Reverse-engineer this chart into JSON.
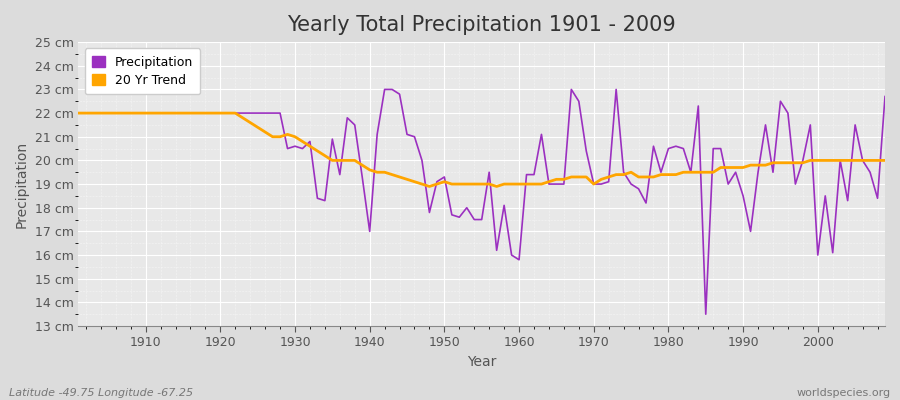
{
  "title": "Yearly Total Precipitation 1901 - 2009",
  "xlabel": "Year",
  "ylabel": "Precipitation",
  "years": [
    1901,
    1902,
    1903,
    1904,
    1905,
    1906,
    1907,
    1908,
    1909,
    1910,
    1911,
    1912,
    1913,
    1914,
    1915,
    1916,
    1917,
    1918,
    1919,
    1920,
    1921,
    1922,
    1923,
    1924,
    1925,
    1926,
    1927,
    1928,
    1929,
    1930,
    1931,
    1932,
    1933,
    1934,
    1935,
    1936,
    1937,
    1938,
    1939,
    1940,
    1941,
    1942,
    1943,
    1944,
    1945,
    1946,
    1947,
    1948,
    1949,
    1950,
    1951,
    1952,
    1953,
    1954,
    1955,
    1956,
    1957,
    1958,
    1959,
    1960,
    1961,
    1962,
    1963,
    1964,
    1965,
    1966,
    1967,
    1968,
    1969,
    1970,
    1971,
    1972,
    1973,
    1974,
    1975,
    1976,
    1977,
    1978,
    1979,
    1980,
    1981,
    1982,
    1983,
    1984,
    1985,
    1986,
    1987,
    1988,
    1989,
    1990,
    1991,
    1992,
    1993,
    1994,
    1995,
    1996,
    1997,
    1998,
    1999,
    2000,
    2001,
    2002,
    2003,
    2004,
    2005,
    2006,
    2007,
    2008,
    2009
  ],
  "precip": [
    22.0,
    22.0,
    22.0,
    22.0,
    22.0,
    22.0,
    22.0,
    22.0,
    22.0,
    22.0,
    22.0,
    22.0,
    22.0,
    22.0,
    22.0,
    22.0,
    22.0,
    22.0,
    22.0,
    22.0,
    22.0,
    22.0,
    22.0,
    22.0,
    22.0,
    22.0,
    22.0,
    22.0,
    20.5,
    20.6,
    20.5,
    20.8,
    18.4,
    18.3,
    20.9,
    19.4,
    21.8,
    21.5,
    19.3,
    17.0,
    21.1,
    23.0,
    23.0,
    22.8,
    21.1,
    21.0,
    20.0,
    17.8,
    19.1,
    19.3,
    17.7,
    17.6,
    18.0,
    17.5,
    17.5,
    19.5,
    16.2,
    18.1,
    16.0,
    15.8,
    19.4,
    19.4,
    21.1,
    19.0,
    19.0,
    19.0,
    23.0,
    22.5,
    20.4,
    19.0,
    19.0,
    19.1,
    23.0,
    19.5,
    19.0,
    18.8,
    18.2,
    20.6,
    19.5,
    20.5,
    20.6,
    20.5,
    19.5,
    22.3,
    13.5,
    20.5,
    20.5,
    19.0,
    19.5,
    18.5,
    17.0,
    19.5,
    21.5,
    19.5,
    22.5,
    22.0,
    19.0,
    20.0,
    21.5,
    16.0,
    18.5,
    16.1,
    20.0,
    18.3,
    21.5,
    20.0,
    19.5,
    18.4,
    22.7
  ],
  "trend": [
    22.0,
    22.0,
    22.0,
    22.0,
    22.0,
    22.0,
    22.0,
    22.0,
    22.0,
    22.0,
    22.0,
    22.0,
    22.0,
    22.0,
    22.0,
    22.0,
    22.0,
    22.0,
    22.0,
    22.0,
    22.0,
    22.0,
    21.8,
    21.6,
    21.4,
    21.2,
    21.0,
    21.0,
    21.1,
    21.0,
    20.8,
    20.6,
    20.4,
    20.2,
    20.0,
    20.0,
    20.0,
    20.0,
    19.8,
    19.6,
    19.5,
    19.5,
    19.4,
    19.3,
    19.2,
    19.1,
    19.0,
    18.9,
    19.0,
    19.1,
    19.0,
    19.0,
    19.0,
    19.0,
    19.0,
    19.0,
    18.9,
    19.0,
    19.0,
    19.0,
    19.0,
    19.0,
    19.0,
    19.1,
    19.2,
    19.2,
    19.3,
    19.3,
    19.3,
    19.0,
    19.2,
    19.3,
    19.4,
    19.4,
    19.5,
    19.3,
    19.3,
    19.3,
    19.4,
    19.4,
    19.4,
    19.5,
    19.5,
    19.5,
    19.5,
    19.5,
    19.7,
    19.7,
    19.7,
    19.7,
    19.8,
    19.8,
    19.8,
    19.9,
    19.9,
    19.9,
    19.9,
    19.9,
    20.0,
    20.0,
    20.0,
    20.0,
    20.0,
    20.0,
    20.0,
    20.0,
    20.0,
    20.0,
    20.0
  ],
  "precip_color": "#9B30C0",
  "trend_color": "#FFA500",
  "bg_color": "#DCDCDC",
  "plot_bg_color": "#E8E8E8",
  "grid_color": "#ffffff",
  "ylim": [
    13,
    25
  ],
  "yticks": [
    13,
    14,
    15,
    16,
    17,
    18,
    19,
    20,
    21,
    22,
    23,
    24,
    25
  ],
  "ytick_labels": [
    "13 cm",
    "14 cm",
    "15 cm",
    "16 cm",
    "17 cm",
    "18 cm",
    "19 cm",
    "20 cm",
    "21 cm",
    "22 cm",
    "23 cm",
    "24 cm",
    "25 cm"
  ],
  "xticks": [
    1910,
    1920,
    1930,
    1940,
    1950,
    1960,
    1970,
    1980,
    1990,
    2000
  ],
  "xlim_left": 1901,
  "xlim_right": 2009,
  "legend_precip": "Precipitation",
  "legend_trend": "20 Yr Trend",
  "footer_left": "Latitude -49.75 Longitude -67.25",
  "footer_right": "worldspecies.org",
  "title_fontsize": 15,
  "axis_fontsize": 10,
  "tick_fontsize": 9,
  "footer_fontsize": 8
}
